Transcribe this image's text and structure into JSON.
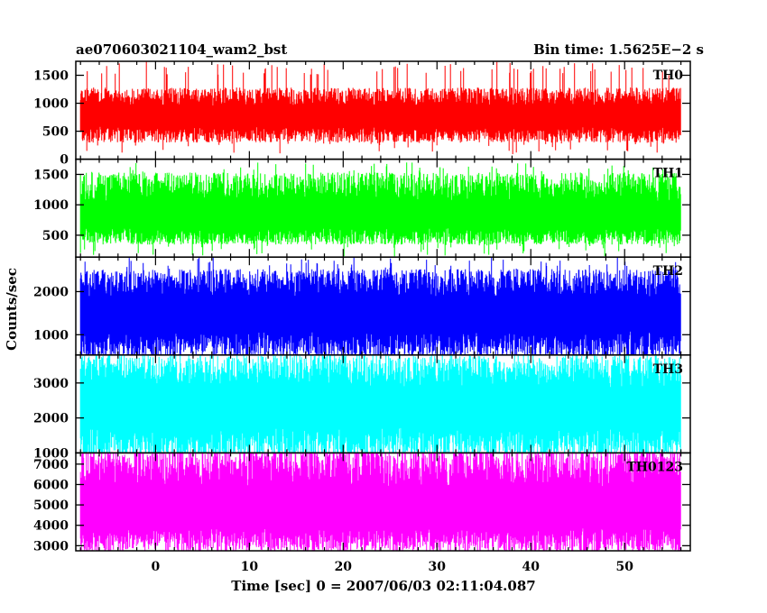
{
  "header": {
    "left_title": "ae070603021104_wam2_bst",
    "right_title": "Bin time: 1.5625E−2 s"
  },
  "axes": {
    "xlabel": "Time [sec] 0 = 2007/06/03 02:11:04.087",
    "ylabel": "Counts/sec"
  },
  "chart_data": {
    "type": "line",
    "xlim": [
      -8.5,
      57
    ],
    "x_data_range": [
      -8,
      56
    ],
    "x_ticks": [
      0,
      10,
      20,
      30,
      40,
      50
    ],
    "grid": false,
    "series": [
      {
        "name": "TH0",
        "color": "#ff0000",
        "ylim": [
          0,
          1750
        ],
        "y_ticks": [
          0,
          500,
          1000,
          1500
        ],
        "baseline": 760,
        "spread": [
          440,
          1120
        ],
        "envelope_min": 80,
        "envelope_max": 1750
      },
      {
        "name": "TH1",
        "color": "#00ff00",
        "ylim": [
          140,
          1750
        ],
        "y_ticks": [
          500,
          1000,
          1500
        ],
        "baseline": 780,
        "spread": [
          480,
          1300
        ],
        "envelope_min": 150,
        "envelope_max": 1700
      },
      {
        "name": "TH2",
        "color": "#0000ff",
        "ylim": [
          530,
          2800
        ],
        "y_ticks": [
          1000,
          2000
        ],
        "baseline": 1480,
        "spread": [
          750,
          2200
        ],
        "envelope_min": 550,
        "envelope_max": 2800
      },
      {
        "name": "TH3",
        "color": "#00ffff",
        "ylim": [
          1000,
          3800
        ],
        "y_ticks": [
          1000,
          2000,
          3000
        ],
        "baseline": 2300,
        "spread": [
          1250,
          3350
        ],
        "envelope_min": 1050,
        "envelope_max": 3800
      },
      {
        "name": "TH0123",
        "color": "#ff00ff",
        "ylim": [
          2750,
          7550
        ],
        "y_ticks": [
          3000,
          4000,
          5000,
          6000,
          7000
        ],
        "baseline": 4600,
        "spread": [
          3250,
          6900
        ],
        "envelope_min": 2900,
        "envelope_max": 7500
      }
    ]
  }
}
